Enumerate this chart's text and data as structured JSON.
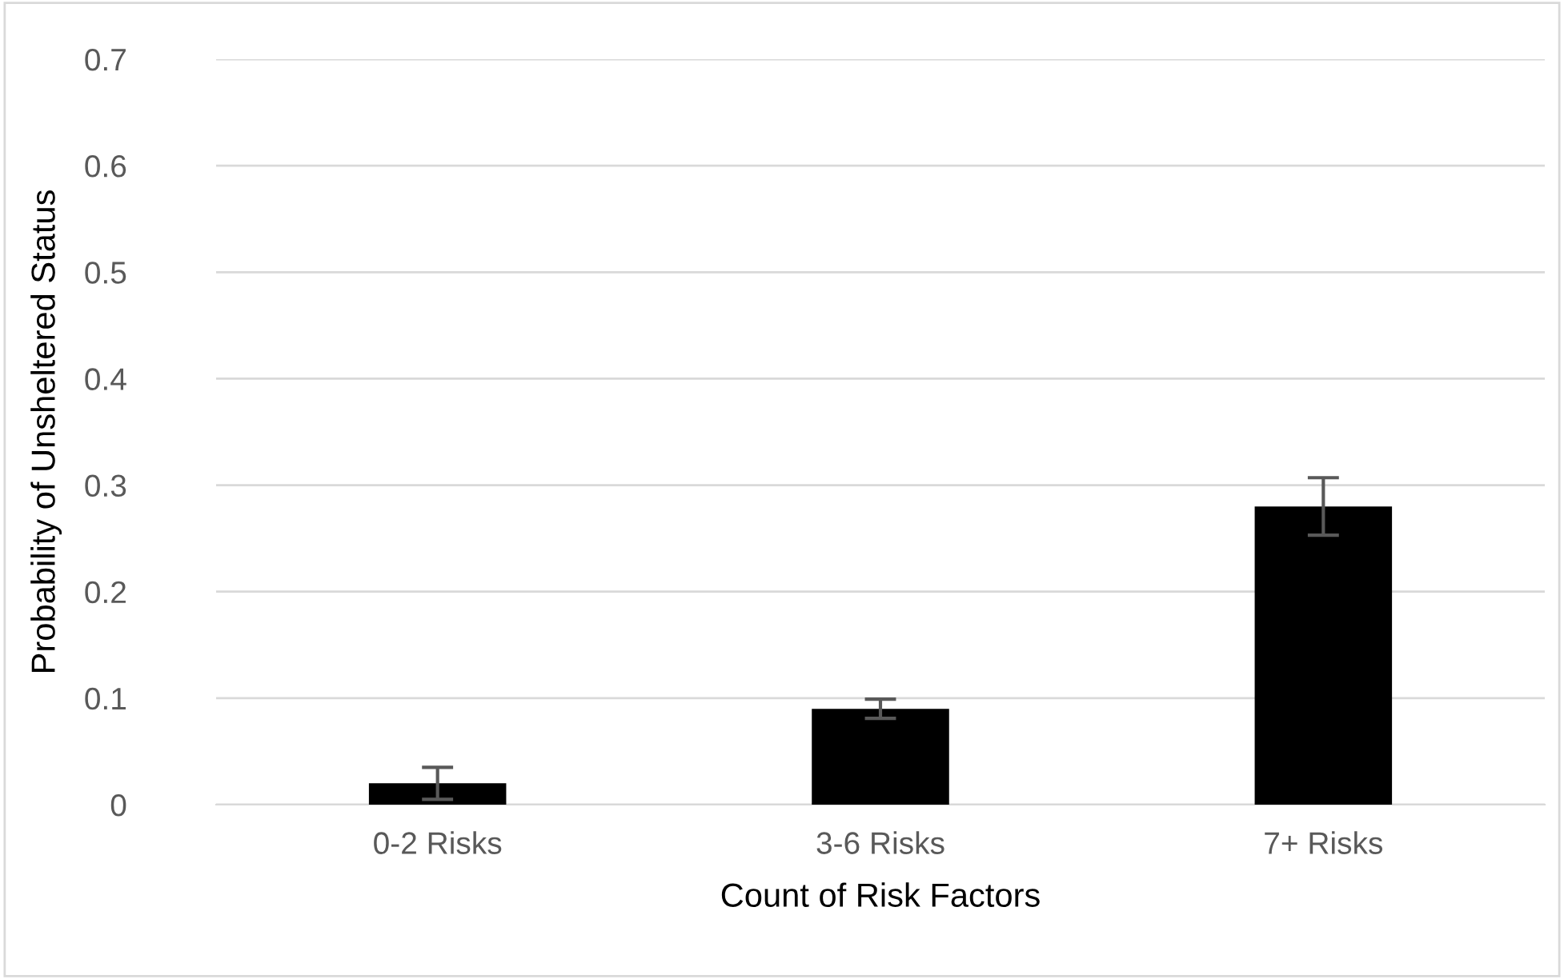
{
  "chart_data": {
    "type": "bar",
    "xlabel": "Count of Risk Factors",
    "ylabel": "Probability of Unsheltered Status",
    "categories": [
      "0-2 Risks",
      "3-6 Risks",
      "7+ Risks"
    ],
    "values": [
      0.02,
      0.09,
      0.28
    ],
    "errors": [
      0.015,
      0.009,
      0.027
    ],
    "color": "#000000",
    "ylim": [
      0,
      0.7
    ],
    "yticks": [
      {
        "value": 0,
        "label": "0"
      },
      0.1,
      0.2,
      0.3,
      0.4,
      0.5,
      0.6,
      0.7
    ],
    "grid": "y"
  }
}
